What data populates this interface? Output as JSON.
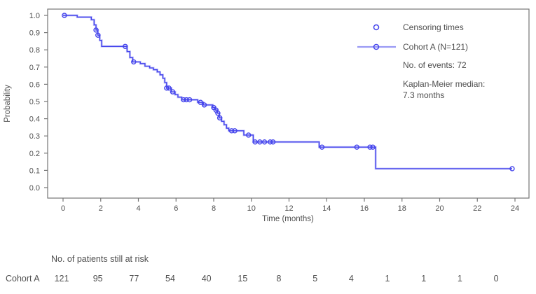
{
  "colors": {
    "series": "#4444ec",
    "series_halo": "#9a9af4",
    "axis": "#767676",
    "text": "#4f4f4f"
  },
  "chart_data": {
    "type": "line",
    "subtype": "kaplan-meier-step",
    "title": "",
    "xlabel": "Time (months)",
    "ylabel": "Probability",
    "xlim": [
      0,
      24
    ],
    "ylim": [
      0.0,
      1.0
    ],
    "grid": false,
    "x_ticks": [
      0,
      2,
      4,
      6,
      8,
      10,
      12,
      14,
      16,
      18,
      20,
      22,
      24
    ],
    "y_tick_labels": [
      "0.0",
      "0.1",
      "0.2",
      "0.3",
      "0.4",
      "0.5",
      "0.6",
      "0.7",
      "0.8",
      "0.9",
      "1.0"
    ],
    "legend_position": "upper right",
    "legend": [
      {
        "marker": "open-circle",
        "label": "Censoring times"
      },
      {
        "marker": "line-with-circle",
        "label": "Cohort A (N=121)"
      }
    ],
    "annotations": [
      "No. of events: 72",
      "Kaplan-Meier median:",
      "7.3 months"
    ],
    "series": [
      {
        "name": "Cohort A (N=121)",
        "n": 121,
        "events": 72,
        "median_months": 7.3,
        "end_time": 23.85,
        "step_points": [
          [
            0,
            1.0
          ],
          [
            0.75,
            0.99
          ],
          [
            1.5,
            0.975
          ],
          [
            1.65,
            0.945
          ],
          [
            1.75,
            0.915
          ],
          [
            1.85,
            0.885
          ],
          [
            1.95,
            0.855
          ],
          [
            2.05,
            0.82
          ],
          [
            3.4,
            0.79
          ],
          [
            3.55,
            0.755
          ],
          [
            3.7,
            0.73
          ],
          [
            4.1,
            0.72
          ],
          [
            4.35,
            0.705
          ],
          [
            4.6,
            0.695
          ],
          [
            4.8,
            0.685
          ],
          [
            5.0,
            0.672
          ],
          [
            5.15,
            0.655
          ],
          [
            5.3,
            0.635
          ],
          [
            5.4,
            0.61
          ],
          [
            5.5,
            0.578
          ],
          [
            5.75,
            0.556
          ],
          [
            5.95,
            0.54
          ],
          [
            6.1,
            0.525
          ],
          [
            6.3,
            0.51
          ],
          [
            7.15,
            0.495
          ],
          [
            7.45,
            0.48
          ],
          [
            7.95,
            0.465
          ],
          [
            8.1,
            0.45
          ],
          [
            8.2,
            0.432
          ],
          [
            8.3,
            0.405
          ],
          [
            8.42,
            0.385
          ],
          [
            8.55,
            0.365
          ],
          [
            8.68,
            0.345
          ],
          [
            8.8,
            0.33
          ],
          [
            9.6,
            0.305
          ],
          [
            10.1,
            0.265
          ],
          [
            13.6,
            0.235
          ],
          [
            16.6,
            0.11
          ]
        ]
      }
    ],
    "censor_points": [
      [
        0.07,
        1.0
      ],
      [
        1.75,
        0.915
      ],
      [
        1.85,
        0.885
      ],
      [
        3.3,
        0.82
      ],
      [
        3.75,
        0.73
      ],
      [
        5.5,
        0.578
      ],
      [
        5.62,
        0.578
      ],
      [
        5.82,
        0.556
      ],
      [
        6.4,
        0.51
      ],
      [
        6.55,
        0.51
      ],
      [
        6.72,
        0.51
      ],
      [
        7.3,
        0.495
      ],
      [
        7.5,
        0.48
      ],
      [
        8.0,
        0.465
      ],
      [
        8.12,
        0.45
      ],
      [
        8.22,
        0.432
      ],
      [
        8.32,
        0.405
      ],
      [
        8.95,
        0.33
      ],
      [
        9.12,
        0.33
      ],
      [
        9.85,
        0.305
      ],
      [
        10.2,
        0.265
      ],
      [
        10.45,
        0.265
      ],
      [
        10.7,
        0.265
      ],
      [
        11.0,
        0.265
      ],
      [
        11.15,
        0.265
      ],
      [
        13.75,
        0.235
      ],
      [
        15.6,
        0.235
      ],
      [
        16.3,
        0.235
      ],
      [
        16.45,
        0.235
      ],
      [
        23.85,
        0.11
      ]
    ]
  },
  "risk_table": {
    "header": "No. of patients still at risk",
    "row_label": "Cohort A",
    "values": [
      "121",
      "95",
      "77",
      "54",
      "40",
      "15",
      "8",
      "5",
      "4",
      "1",
      "1",
      "1",
      "0"
    ]
  }
}
